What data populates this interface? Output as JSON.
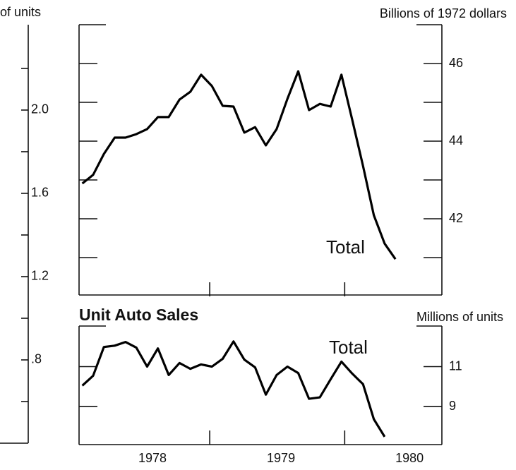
{
  "chart_data": [
    {
      "type": "axis",
      "ylabel": "of units",
      "ylim": [
        0.4,
        2.41
      ],
      "yticks": [
        0.6,
        {
          "value": 0.8,
          "label": ".8"
        },
        1.0,
        1.2,
        1.4,
        1.6,
        1.8,
        {
          "value": 2,
          "label": "2.0"
        },
        2.2
      ],
      "ytick_labels_shown": [
        ".8",
        "1.2",
        "1.6",
        "2.0"
      ]
    },
    {
      "type": "line",
      "ylabel": "Billions of 1972 dollars",
      "ylim": [
        40,
        47
      ],
      "yticks": [
        41,
        42,
        43,
        44,
        45,
        46
      ],
      "xlim": [
        -0.3,
        33.3
      ],
      "xticks": [
        11.8,
        24.3
      ],
      "series": [
        {
          "name": "Total",
          "color": "#000000",
          "values": [
            42.91,
            43.13,
            43.67,
            44.09,
            44.09,
            44.18,
            44.31,
            44.62,
            44.62,
            45.07,
            45.27,
            45.71,
            45.42,
            44.91,
            44.89,
            44.22,
            44.36,
            43.89,
            44.31,
            45.09,
            45.8,
            44.8,
            44.96,
            44.89,
            45.71,
            44.55,
            43.36,
            42.09,
            41.36,
            40.96
          ]
        }
      ]
    },
    {
      "type": "line",
      "title": "Unit Auto Sales",
      "ylabel": "Millions of units",
      "ylim": [
        7.1,
        13.1
      ],
      "yticks": [
        9,
        11
      ],
      "xlim": [
        -0.3,
        33.3
      ],
      "xticks": [
        11.8,
        24.3
      ],
      "xlabels": [
        {
          "value": 6.5,
          "label": "1978"
        },
        {
          "value": 18.4,
          "label": "1979"
        },
        {
          "value": 30.3,
          "label": "1980"
        }
      ],
      "series": [
        {
          "name": "Total",
          "color": "#000000",
          "values": [
            10.05,
            10.54,
            11.98,
            12.05,
            12.23,
            11.95,
            11.0,
            11.91,
            10.58,
            11.18,
            10.89,
            11.11,
            11.0,
            11.39,
            12.26,
            11.35,
            10.96,
            9.6,
            10.58,
            11.0,
            10.68,
            9.39,
            9.46,
            10.37,
            11.25,
            10.65,
            10.12,
            8.37,
            7.49
          ]
        }
      ]
    }
  ]
}
